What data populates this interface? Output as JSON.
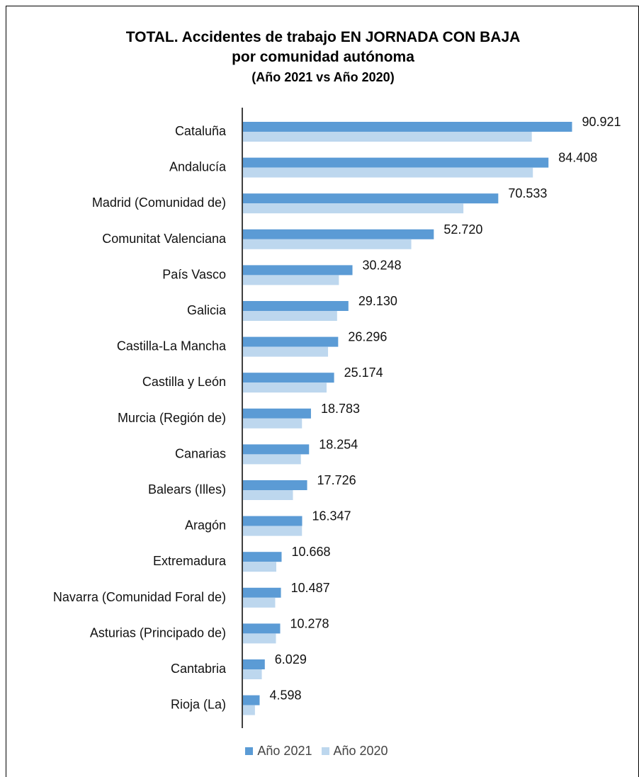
{
  "chart_data": {
    "type": "bar",
    "orientation": "horizontal",
    "title_lines": [
      "TOTAL. Accidentes de trabajo EN JORNADA CON BAJA",
      "por comunidad autónoma",
      "(Año 2021 vs Año 2020)"
    ],
    "categories": [
      "Cataluña",
      "Andalucía",
      "Madrid (Comunidad de)",
      "Comunitat Valenciana",
      "País Vasco",
      "Galicia",
      "Castilla-La Mancha",
      "Castilla y León",
      "Murcia (Región de)",
      "Canarias",
      "Balears (Illes)",
      "Aragón",
      "Extremadura",
      "Navarra (Comunidad Foral de)",
      "Asturias (Principado de)",
      "Cantabria",
      "Rioja (La)"
    ],
    "series": [
      {
        "name": "Año 2021",
        "color": "#5b9bd5",
        "values": [
          90921,
          84408,
          70533,
          52720,
          30248,
          29130,
          26296,
          25174,
          18783,
          18254,
          17726,
          16347,
          10668,
          10487,
          10278,
          6029,
          4598
        ],
        "labels": [
          "90.921",
          "84.408",
          "70.533",
          "52.720",
          "30.248",
          "29.130",
          "26.296",
          "25.174",
          "18.783",
          "18.254",
          "17.726",
          "16.347",
          "10.668",
          "10.487",
          "10.278",
          "6.029",
          "4.598"
        ]
      },
      {
        "name": "Año 2020",
        "color": "#bdd7ee",
        "values": [
          79800,
          80100,
          60900,
          46500,
          26500,
          26000,
          23500,
          23100,
          16300,
          16000,
          13800,
          16300,
          9200,
          8900,
          9100,
          5200,
          3300
        ]
      }
    ],
    "xlim": [
      0,
      92000
    ],
    "grid": false,
    "legend_position": "bottom"
  }
}
